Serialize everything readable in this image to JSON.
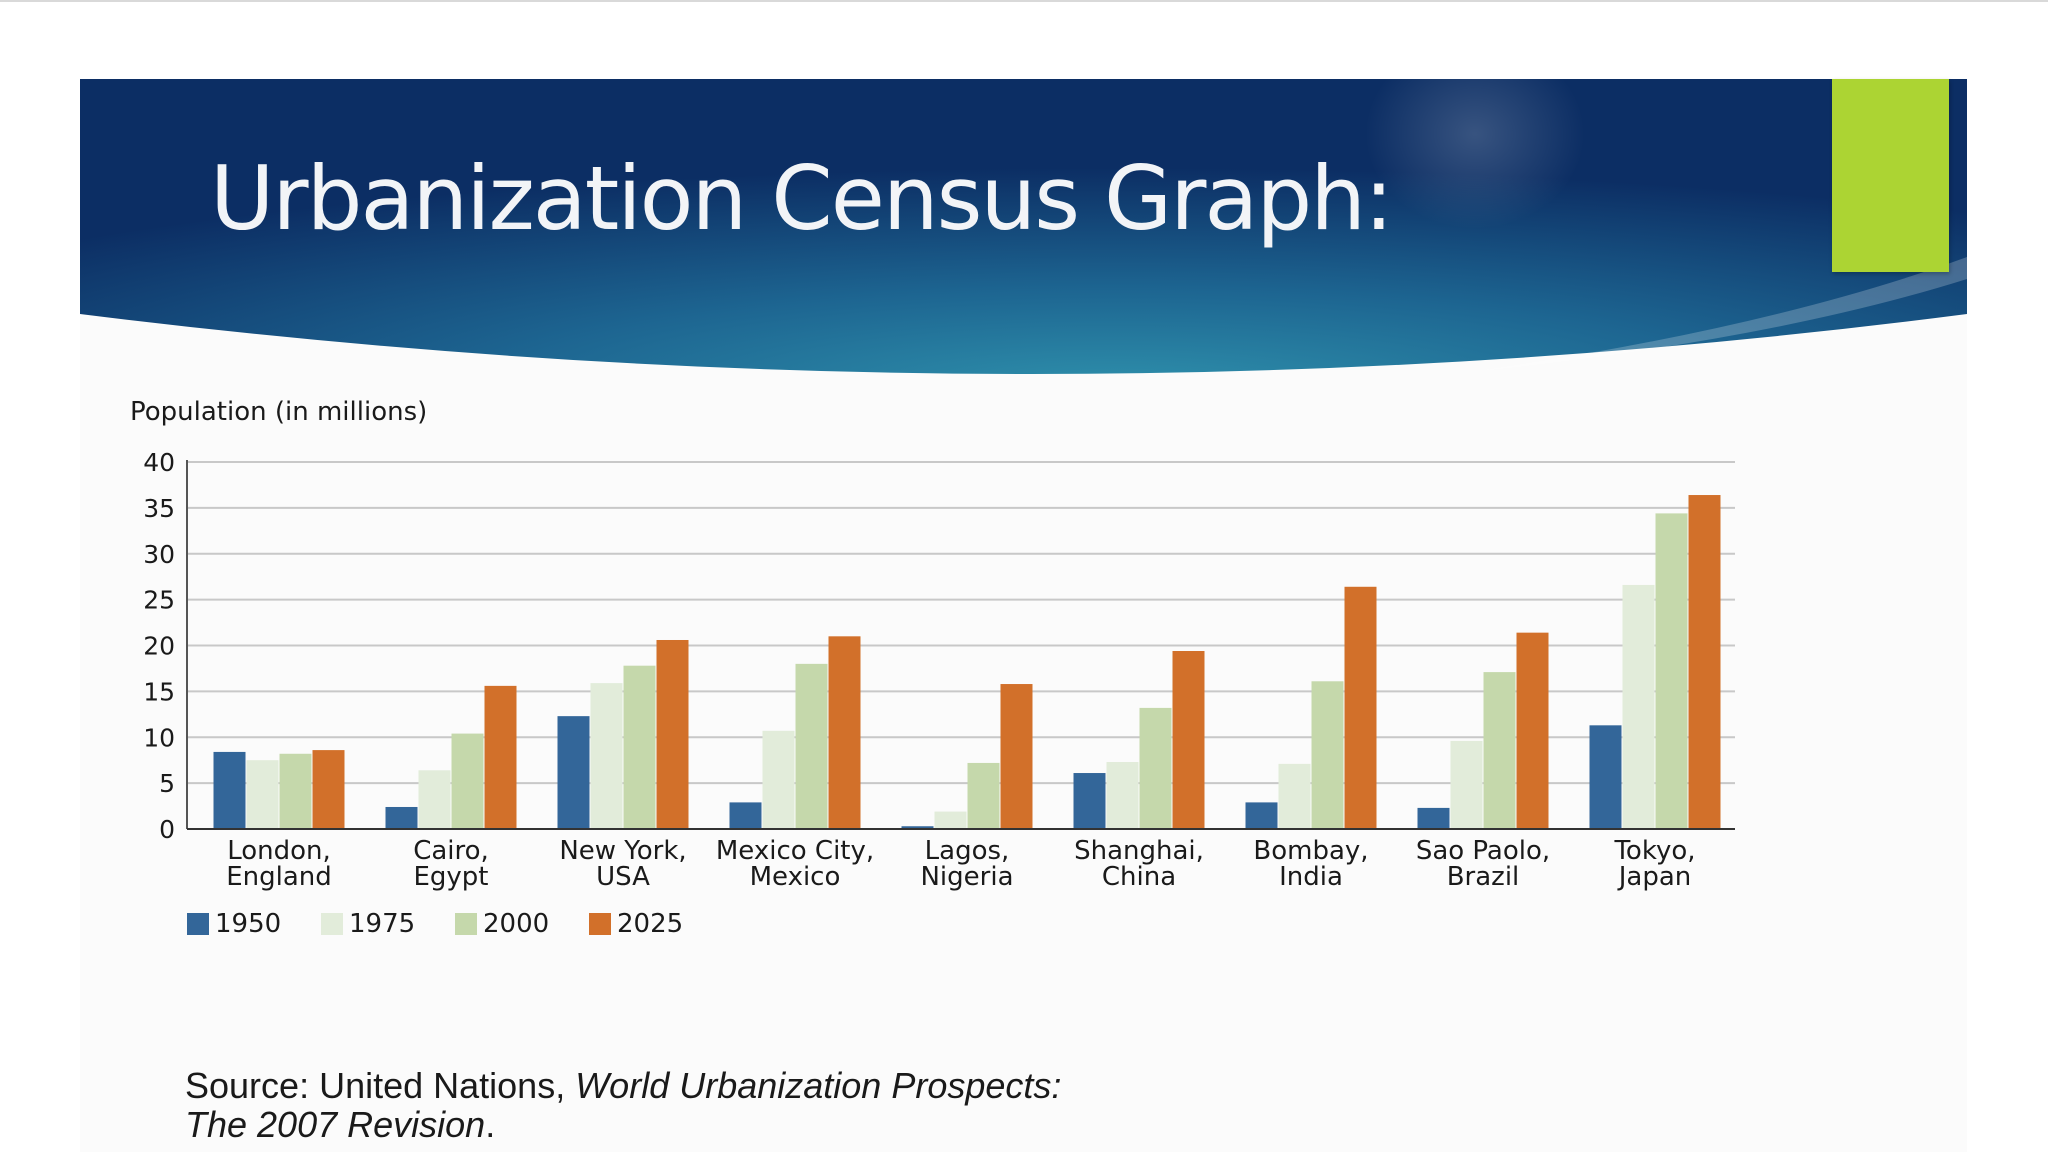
{
  "slide": {
    "title": "Urbanization Census Graph:",
    "accent_color": "#acd433",
    "banner_colors": [
      "#0c2e64",
      "#1f6f95",
      "#2a8aa6"
    ]
  },
  "source": {
    "prefix": "Source: United Nations, ",
    "work_line1": "World Urbanization Prospects:",
    "work_line2": "The 2007 Revision",
    "suffix": "."
  },
  "chart_data": {
    "type": "bar",
    "title": "",
    "ylabel": "Population (in millions)",
    "xlabel": "",
    "ylim": [
      0,
      40
    ],
    "yticks": [
      "0",
      "5",
      "10",
      "15",
      "20",
      "25",
      "30",
      "35",
      "40"
    ],
    "grid": true,
    "legend_position": "bottom-left",
    "categories": [
      [
        "London,",
        "England"
      ],
      [
        "Cairo,",
        "Egypt"
      ],
      [
        "New York,",
        "USA"
      ],
      [
        "Mexico City,",
        "Mexico"
      ],
      [
        "Lagos,",
        "Nigeria"
      ],
      [
        "Shanghai,",
        "China"
      ],
      [
        "Bombay,",
        "India"
      ],
      [
        "Sao Paolo,",
        "Brazil"
      ],
      [
        "Tokyo,",
        "Japan"
      ]
    ],
    "series": [
      {
        "name": "1950",
        "color": "#336699",
        "values": [
          8.4,
          2.4,
          12.3,
          2.9,
          0.3,
          6.1,
          2.9,
          2.3,
          11.3
        ]
      },
      {
        "name": "1975",
        "color": "#e2ecda",
        "values": [
          7.5,
          6.4,
          15.9,
          10.7,
          1.9,
          7.3,
          7.1,
          9.6,
          26.6
        ]
      },
      {
        "name": "2000",
        "color": "#c5d8ab",
        "values": [
          8.2,
          10.4,
          17.8,
          18.0,
          7.2,
          13.2,
          16.1,
          17.1,
          34.4
        ]
      },
      {
        "name": "2025",
        "color": "#d2702a",
        "values": [
          8.6,
          15.6,
          20.6,
          21.0,
          15.8,
          19.4,
          26.4,
          21.4,
          36.4
        ]
      }
    ]
  }
}
